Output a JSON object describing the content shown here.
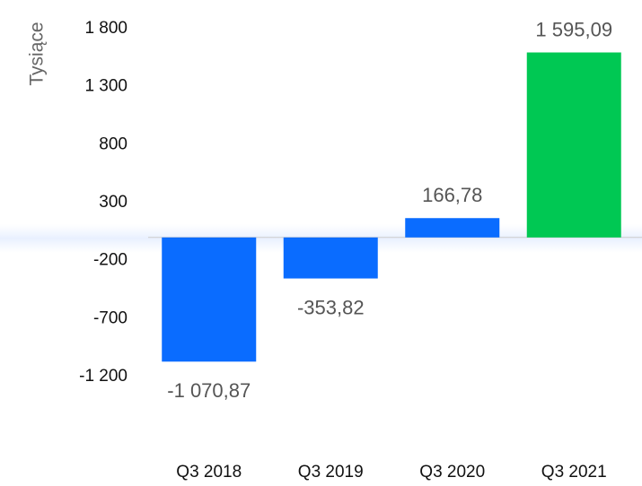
{
  "chart_data": {
    "type": "bar",
    "y_axis_label": "Tysiące",
    "categories": [
      "Q3 2018",
      "Q3 2019",
      "Q3 2020",
      "Q3 2021"
    ],
    "values": [
      -1070.87,
      -353.82,
      166.78,
      1595.09
    ],
    "value_labels": [
      "-1 070,87",
      "-353,82",
      "166,78",
      "1 595,09"
    ],
    "colors": [
      "#0a6cff",
      "#0a6cff",
      "#0a6cff",
      "#00c853"
    ],
    "ylim": [
      -1200,
      1800
    ],
    "yticks": [
      {
        "value": -1200,
        "label": "-1 200"
      },
      -700,
      -200,
      300,
      800,
      {
        "value": 1300,
        "label": "1 300"
      },
      {
        "value": 1800,
        "label": "1 800"
      }
    ],
    "grid": false
  }
}
